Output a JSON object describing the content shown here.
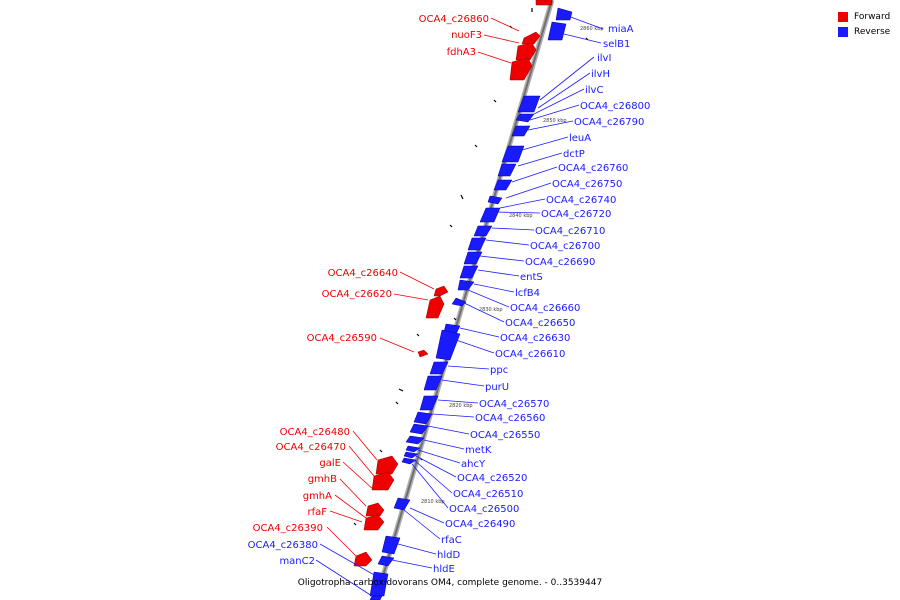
{
  "legend": {
    "forward_label": "Forward",
    "reverse_label": "Reverse",
    "forward_color": "#ee0000",
    "reverse_color": "#1a1aff"
  },
  "caption": "Oligotropha carboxidovorans OM4, complete genome. - 0..3539447",
  "kbp_markers": [
    "2860 kbp",
    "2850 kbp",
    "2840 kbp",
    "2830 kbp",
    "2820 kbp",
    "2810 kbp"
  ],
  "forward_genes": [
    "OCA4_c26860",
    "nuoF3",
    "fdhA3",
    "OCA4_c26640",
    "OCA4_c26620",
    "OCA4_c26590",
    "OCA4_c26480",
    "OCA4_c26470",
    "galE",
    "gmhB",
    "gmhA",
    "rfaF",
    "OCA4_c26390"
  ],
  "reverse_genes": [
    "miaA",
    "selB1",
    "ilvI",
    "ilvH",
    "ilvC",
    "OCA4_c26800",
    "OCA4_c26790",
    "leuA",
    "dctP",
    "OCA4_c26760",
    "OCA4_c26750",
    "OCA4_c26740",
    "OCA4_c26720",
    "OCA4_c26710",
    "OCA4_c26700",
    "OCA4_c26690",
    "entS",
    "lcfB4",
    "OCA4_c26660",
    "OCA4_c26650",
    "OCA4_c26630",
    "OCA4_c26610",
    "ppc",
    "purU",
    "OCA4_c26570",
    "OCA4_c26560",
    "OCA4_c26550",
    "metK",
    "ahcY",
    "OCA4_c26520",
    "OCA4_c26510",
    "OCA4_c26500",
    "OCA4_c26490",
    "rfaC",
    "hldD",
    "hldE",
    "OCA4_c26380",
    "manC2"
  ]
}
